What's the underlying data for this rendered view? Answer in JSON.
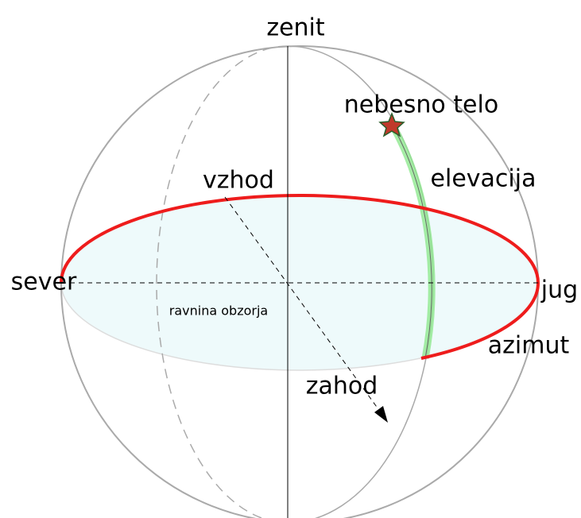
{
  "labels": {
    "zenith": "zenit",
    "body": "nebesno telo",
    "elevation": "elevacija",
    "east": "vzhod",
    "north": "sever",
    "south": "jug",
    "azimuth": "azimut",
    "horizon_plane": "ravnina obzorja",
    "west": "zahod"
  }
}
